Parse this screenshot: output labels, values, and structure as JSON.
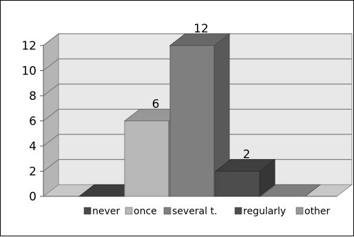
{
  "chart_data": {
    "type": "bar",
    "style": "3d-column",
    "categories": [
      "never",
      "once",
      "several t.",
      "regularly",
      "other"
    ],
    "values": [
      0,
      6,
      12,
      2,
      0
    ],
    "data_labels": [
      "",
      "6",
      "12",
      "2",
      ""
    ],
    "title": "",
    "xlabel": "",
    "ylabel": "",
    "ylim": [
      0,
      12
    ],
    "yticks": [
      0,
      2,
      4,
      6,
      8,
      10,
      12
    ],
    "grid": true,
    "legend": {
      "placement": "bottom",
      "entries": [
        "never",
        "once",
        "several t.",
        "regularly",
        "other"
      ]
    },
    "colors": {
      "never": "#4a4a4a",
      "once": "#b8b8b8",
      "several t.": "#7f7f7f",
      "regularly": "#4d4d4d",
      "other": "#9a9a9a",
      "wall": "#e8e8e8",
      "floor": "#c8c8c8",
      "gridline": "#7f7f7f"
    }
  }
}
